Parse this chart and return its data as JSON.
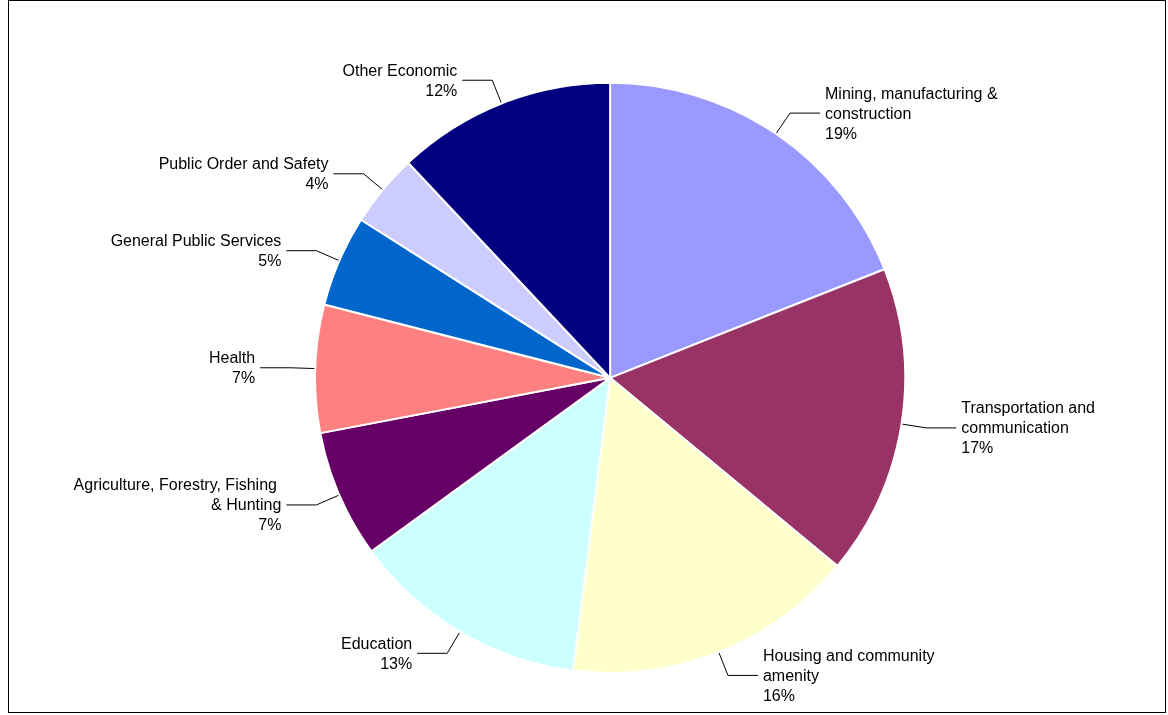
{
  "chart_data": {
    "type": "pie",
    "categories": [
      "Mining, manufacturing & construction",
      "Transportation and communication",
      "Housing and community amenity",
      "Education",
      "Agriculture, Forestry, Fishing & Hunting",
      "Health",
      "General Public Services",
      "Public Order and Safety",
      "Other Economic"
    ],
    "values": [
      19,
      17,
      16,
      13,
      7,
      7,
      5,
      4,
      12
    ],
    "value_labels": [
      "19%",
      "17%",
      "16%",
      "13%",
      "7%",
      "7%",
      "5%",
      "4%",
      "12%"
    ],
    "colors": [
      "#9999ff",
      "#993366",
      "#ffffcc",
      "#ccffff",
      "#660066",
      "#ff8080",
      "#0066cc",
      "#ccccff",
      "#000080"
    ],
    "legend": false
  }
}
